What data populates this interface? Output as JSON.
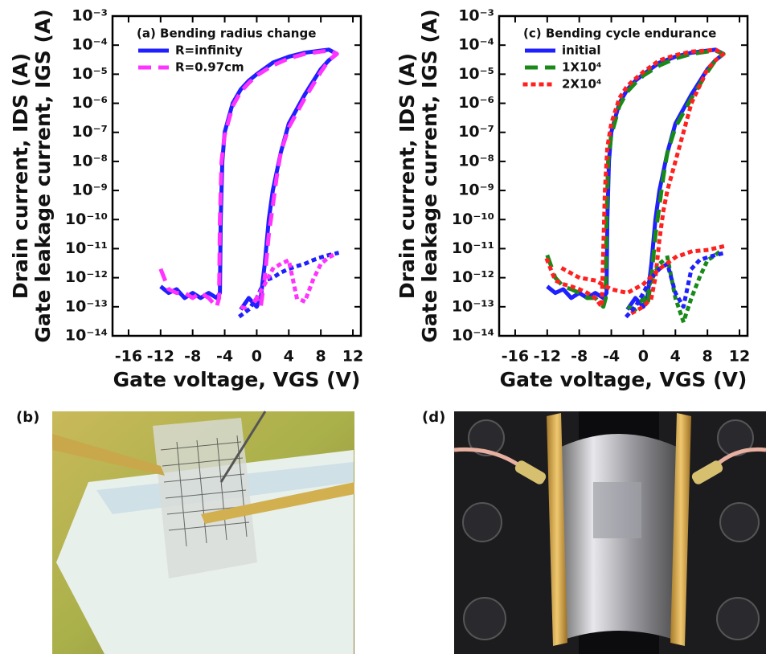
{
  "chart_data": [
    {
      "type": "line",
      "title": "(a) Bending radius change",
      "ylabel": "Drain current, IDS (A)",
      "ylabel2": "Gate leakage current, IGS (A)",
      "xlabel": "Gate voltage, VGS (V)",
      "xlim": [
        -18,
        13
      ],
      "xticks": [
        -16,
        -12,
        -8,
        -4,
        0,
        4,
        8,
        12
      ],
      "ylim": [
        1e-14,
        0.001
      ],
      "log_y": true,
      "legend": "upper left",
      "yticks": [
        {
          "value": 1e-14,
          "label": "10⁻¹⁴"
        },
        {
          "value": 1e-13,
          "label": "10⁻¹³"
        },
        {
          "value": 1e-12,
          "label": "10⁻¹²"
        },
        {
          "value": 1e-11,
          "label": "10⁻¹¹"
        },
        {
          "value": 1e-10,
          "label": "10⁻¹⁰"
        },
        {
          "value": 1e-09,
          "label": "10⁻⁹"
        },
        {
          "value": 1e-08,
          "label": "10⁻⁸"
        },
        {
          "value": 1e-07,
          "label": "10⁻⁷"
        },
        {
          "value": 1e-06,
          "label": "10⁻⁶"
        },
        {
          "value": 1e-05,
          "label": "10⁻⁵"
        },
        {
          "value": 0.0001,
          "label": "10⁻⁴"
        },
        {
          "value": 0.001,
          "label": "10⁻³"
        }
      ],
      "series": [
        {
          "name": "R=infinity",
          "color": "#1f1fff",
          "dash": "solid",
          "x": [
            -12,
            -11,
            -10,
            -9,
            -8,
            -7,
            -6,
            -5,
            -4.6,
            -4.5,
            -4.3,
            -4,
            -3,
            -2,
            -1,
            0,
            2,
            4,
            6,
            8,
            9,
            10,
            9,
            8,
            6,
            4,
            3,
            2,
            1.5,
            1,
            0.5,
            0,
            -1,
            -2
          ],
          "values": [
            5e-13,
            3e-13,
            4e-13,
            2e-13,
            3e-13,
            2e-13,
            3e-13,
            2e-13,
            3e-13,
            1e-10,
            1e-08,
            1e-07,
            1e-06,
            3e-06,
            6e-06,
            1e-05,
            2.5e-05,
            4e-05,
            5.5e-05,
            6.5e-05,
            7e-05,
            5e-05,
            3e-05,
            1.5e-05,
            2e-06,
            2e-07,
            2e-08,
            1e-09,
            1e-10,
            3e-12,
            2e-13,
            1e-13,
            2e-13,
            8e-14
          ]
        },
        {
          "name": "R=0.97cm",
          "color": "#ff33ff",
          "dash": "dashed",
          "x": [
            -12,
            -11,
            -10,
            -9,
            -8,
            -7,
            -6,
            -5,
            -4.7,
            -4.6,
            -4.4,
            -4,
            -3,
            -2,
            -1,
            0,
            2,
            4,
            6,
            8,
            9,
            10,
            9,
            8,
            6,
            4,
            3,
            2.5,
            2,
            1.5,
            1,
            0.5,
            0,
            -1,
            -2
          ],
          "values": [
            2e-12,
            4e-13,
            3e-13,
            3e-13,
            2e-13,
            3e-13,
            2e-13,
            1e-13,
            2e-13,
            1e-10,
            1e-08,
            8e-08,
            8e-07,
            2.5e-06,
            5e-06,
            9e-06,
            2e-05,
            3.5e-05,
            5e-05,
            6e-05,
            6.5e-05,
            5e-05,
            3e-05,
            1.2e-05,
            1.5e-06,
            1.5e-07,
            2e-08,
            3e-09,
            3e-10,
            3e-11,
            1e-12,
            1e-13,
            2e-13,
            8e-14,
            1e-13
          ]
        },
        {
          "color": "#1f1fff",
          "dash": "dotted",
          "x": [
            -2,
            -1,
            0,
            1,
            2,
            3,
            4,
            5,
            6,
            7,
            8,
            9,
            10
          ],
          "values": [
            5e-14,
            8e-14,
            2e-13,
            8e-13,
            1e-12,
            1.5e-12,
            2e-12,
            2.5e-12,
            3e-12,
            4e-12,
            5e-12,
            6e-12,
            7e-12
          ]
        },
        {
          "color": "#ff33ff",
          "dash": "dotted",
          "x": [
            0,
            1,
            2,
            3,
            4,
            5,
            6,
            7,
            8,
            9,
            10
          ],
          "values": [
            2e-13,
            6e-13,
            2e-12,
            3e-12,
            4e-12,
            2e-13,
            1.5e-13,
            8e-13,
            3e-12,
            5e-12,
            7e-12
          ]
        }
      ]
    },
    {
      "type": "line",
      "title": "(c) Bending cycle endurance",
      "ylabel": "Drain current, IDS (A)",
      "ylabel2": "Gate leakage current, IGS (A)",
      "xlabel": "Gate voltage, VGS (V)",
      "xlim": [
        -18,
        13
      ],
      "xticks": [
        -16,
        -12,
        -8,
        -4,
        0,
        4,
        8,
        12
      ],
      "ylim": [
        1e-14,
        0.001
      ],
      "log_y": true,
      "legend": "upper left",
      "yticks": [
        {
          "value": 1e-14,
          "label": "10⁻¹⁴"
        },
        {
          "value": 1e-13,
          "label": "10⁻¹³"
        },
        {
          "value": 1e-12,
          "label": "10⁻¹²"
        },
        {
          "value": 1e-11,
          "label": "10⁻¹¹"
        },
        {
          "value": 1e-10,
          "label": "10⁻¹⁰"
        },
        {
          "value": 1e-09,
          "label": "10⁻⁹"
        },
        {
          "value": 1e-08,
          "label": "10⁻⁸"
        },
        {
          "value": 1e-07,
          "label": "10⁻⁷"
        },
        {
          "value": 1e-06,
          "label": "10⁻⁶"
        },
        {
          "value": 1e-05,
          "label": "10⁻⁵"
        },
        {
          "value": 0.0001,
          "label": "10⁻⁴"
        },
        {
          "value": 0.001,
          "label": "10⁻³"
        }
      ],
      "series": [
        {
          "name": "initial",
          "color": "#1f1fff",
          "dash": "solid",
          "x": [
            -12,
            -11,
            -10,
            -9,
            -8,
            -7,
            -6,
            -5,
            -4.6,
            -4.5,
            -4.3,
            -4,
            -3,
            -2,
            -1,
            0,
            2,
            4,
            6,
            8,
            9,
            10,
            9,
            8,
            6,
            4,
            3,
            2,
            1.5,
            1,
            0.5,
            0,
            -1,
            -2
          ],
          "values": [
            5e-13,
            3e-13,
            4e-13,
            2e-13,
            3e-13,
            2e-13,
            3e-13,
            2e-13,
            3e-13,
            1e-10,
            1e-08,
            1e-07,
            1e-06,
            3e-06,
            6e-06,
            1e-05,
            2.5e-05,
            4e-05,
            5.5e-05,
            6.5e-05,
            7e-05,
            5e-05,
            3e-05,
            1.5e-05,
            2e-06,
            2e-07,
            2e-08,
            1e-09,
            1e-10,
            3e-12,
            2e-13,
            1e-13,
            2e-13,
            8e-14
          ]
        },
        {
          "name": "1X10⁴",
          "color": "#188a18",
          "dash": "dashed",
          "x": [
            -12,
            -11,
            -10,
            -9,
            -8,
            -7,
            -6,
            -5,
            -4.7,
            -4.6,
            -4.4,
            -4,
            -3,
            -2,
            -1,
            0,
            2,
            4,
            6,
            8,
            9,
            10,
            9,
            8,
            6,
            4,
            3,
            2.5,
            2,
            1.5,
            1,
            0.5,
            0,
            -1,
            -2
          ],
          "values": [
            6e-12,
            1e-12,
            5e-13,
            4e-13,
            3e-13,
            2e-13,
            2e-13,
            1e-13,
            2e-13,
            1e-10,
            1e-08,
            8e-08,
            8e-07,
            2.5e-06,
            5e-06,
            9e-06,
            2e-05,
            3.5e-05,
            5e-05,
            6e-05,
            6.5e-05,
            5e-05,
            3e-05,
            1.2e-05,
            1.5e-06,
            1.5e-07,
            2e-08,
            3e-09,
            3e-10,
            3e-11,
            1e-12,
            1e-13,
            2e-13,
            8e-14,
            1e-13
          ]
        },
        {
          "name": "2X10⁴",
          "color": "#ff2020",
          "dash": "dotted",
          "x": [
            -12,
            -11,
            -10,
            -9,
            -8,
            -7,
            -6,
            -5.2,
            -5,
            -4.8,
            -4.5,
            -4,
            -3,
            -2,
            -1,
            0,
            2,
            4,
            6,
            8,
            9,
            10,
            9,
            8,
            6,
            5,
            4,
            3,
            2.5,
            2,
            1.5,
            1,
            0,
            -2
          ],
          "values": [
            4e-12,
            8e-13,
            6e-13,
            5e-13,
            4e-13,
            3e-13,
            2e-13,
            1e-13,
            1e-11,
            1e-09,
            3e-08,
            2e-07,
            1.5e-06,
            4e-06,
            7e-06,
            1.2e-05,
            3e-05,
            4.5e-05,
            6e-05,
            6.5e-05,
            7e-05,
            5e-05,
            3e-05,
            1.5e-05,
            1e-06,
            1e-07,
            1e-08,
            1e-09,
            2e-10,
            2e-11,
            1e-12,
            2e-13,
            1e-13,
            5e-14
          ]
        },
        {
          "color": "#188a18",
          "dash": "dotted",
          "x": [
            0,
            1,
            2,
            3,
            4,
            5,
            6,
            7,
            8,
            9,
            10
          ],
          "values": [
            2e-13,
            8e-13,
            3e-12,
            5e-12,
            2e-13,
            3e-14,
            2e-13,
            1e-12,
            4e-12,
            6e-12,
            1e-11
          ]
        },
        {
          "color": "#1f1fff",
          "dash": "dotted",
          "x": [
            -2,
            -1,
            0,
            1,
            2,
            3,
            4,
            5,
            6,
            7,
            8,
            9,
            10
          ],
          "values": [
            5e-14,
            1e-13,
            3e-13,
            1e-12,
            2e-12,
            3e-12,
            3e-13,
            1e-13,
            2e-12,
            4e-12,
            5e-12,
            6e-12,
            7e-12
          ]
        },
        {
          "color": "#ff2020",
          "dash": "dotted",
          "x": [
            -10,
            -8,
            -6,
            -4,
            -2,
            0,
            2,
            4,
            6,
            8,
            10
          ],
          "values": [
            2e-12,
            1e-12,
            8e-13,
            4e-13,
            3e-13,
            6e-13,
            2e-12,
            5e-12,
            8e-12,
            9e-12,
            1.2e-11
          ]
        }
      ]
    }
  ],
  "photos": [
    {
      "label": "(b)"
    },
    {
      "label": "(d)"
    }
  ]
}
